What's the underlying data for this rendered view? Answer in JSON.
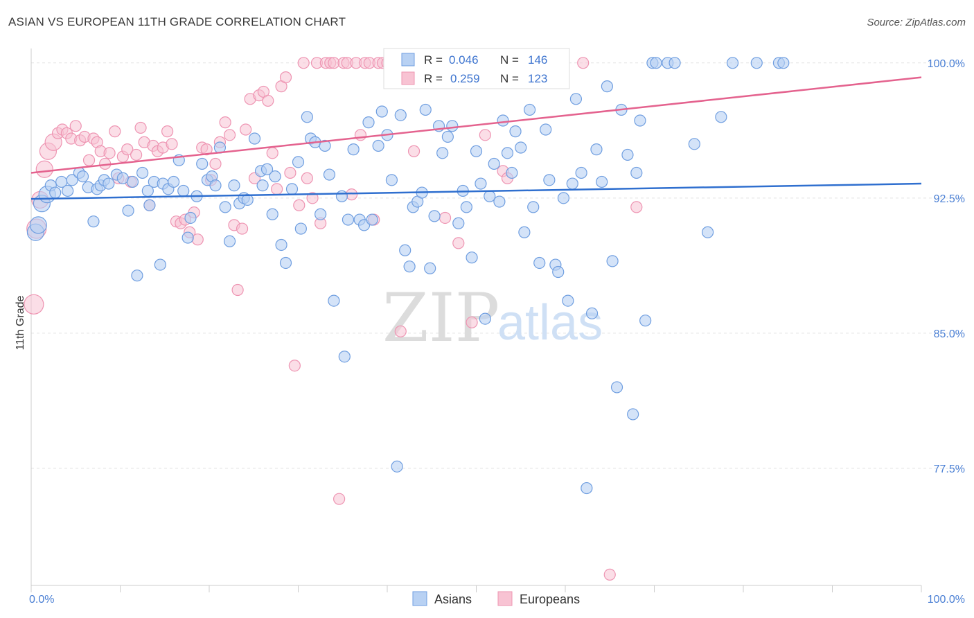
{
  "title": "ASIAN VS EUROPEAN 11TH GRADE CORRELATION CHART",
  "source": "Source: ZipAtlas.com",
  "watermark": {
    "zip": "ZIP",
    "atlas": "atlas"
  },
  "legend": {
    "r_label": "R =",
    "n_label": "N =",
    "asians": {
      "r": "0.046",
      "n": "146"
    },
    "europeans": {
      "r": "0.259",
      "n": "123"
    }
  },
  "bottom_legend": {
    "asians": "Asians",
    "europeans": "Europeans"
  },
  "colors": {
    "asians_fill": "#b8d1f3",
    "asians_stroke": "#6f9ee0",
    "asians_line": "#2f6fcf",
    "europeans_fill": "#f8c3d3",
    "europeans_stroke": "#ee94b2",
    "europeans_line": "#e4628e",
    "tick": "#4a7fd4"
  },
  "chart_data": {
    "type": "scatter",
    "title": "ASIAN VS EUROPEAN 11TH GRADE CORRELATION CHART",
    "xlabel": "",
    "ylabel": "11th Grade",
    "xlim": [
      0,
      100
    ],
    "ylim": [
      71.0,
      100.8
    ],
    "x_tick_labels": [
      "0.0%",
      "100.0%"
    ],
    "y_ticks": [
      77.5,
      85.0,
      92.5,
      100.0
    ],
    "y_tick_labels": [
      "77.5%",
      "85.0%",
      "92.5%",
      "100.0%"
    ],
    "grid": "horizontal dashed",
    "legend_position": "top-center",
    "series": [
      {
        "name": "Asians",
        "trend": {
          "x": [
            0,
            100
          ],
          "y": [
            92.45,
            93.3
          ]
        },
        "points": [
          [
            0.5,
            90.6
          ],
          [
            0.8,
            91.0
          ],
          [
            1.2,
            92.2
          ],
          [
            1.8,
            92.7
          ],
          [
            2.2,
            93.2
          ],
          [
            2.7,
            92.8
          ],
          [
            3.4,
            93.4
          ],
          [
            4.1,
            92.9
          ],
          [
            4.6,
            93.5
          ],
          [
            5.4,
            93.9
          ],
          [
            5.8,
            93.7
          ],
          [
            6.4,
            93.1
          ],
          [
            7.0,
            91.2
          ],
          [
            7.4,
            93.0
          ],
          [
            7.8,
            93.2
          ],
          [
            8.2,
            93.5
          ],
          [
            8.7,
            93.3
          ],
          [
            9.6,
            93.8
          ],
          [
            10.3,
            93.6
          ],
          [
            10.9,
            91.8
          ],
          [
            11.4,
            93.4
          ],
          [
            11.9,
            88.2
          ],
          [
            12.5,
            93.9
          ],
          [
            13.1,
            92.9
          ],
          [
            13.3,
            92.1
          ],
          [
            13.8,
            93.4
          ],
          [
            14.5,
            88.8
          ],
          [
            14.8,
            93.3
          ],
          [
            15.4,
            93.0
          ],
          [
            16.0,
            93.4
          ],
          [
            16.6,
            94.6
          ],
          [
            17.1,
            92.9
          ],
          [
            17.6,
            90.3
          ],
          [
            17.9,
            91.4
          ],
          [
            18.6,
            92.6
          ],
          [
            19.2,
            94.4
          ],
          [
            19.8,
            93.5
          ],
          [
            20.3,
            93.7
          ],
          [
            20.7,
            93.2
          ],
          [
            21.2,
            95.3
          ],
          [
            21.8,
            92.0
          ],
          [
            22.3,
            90.1
          ],
          [
            22.8,
            93.2
          ],
          [
            23.4,
            92.2
          ],
          [
            23.9,
            92.5
          ],
          [
            24.3,
            92.4
          ],
          [
            25.1,
            95.8
          ],
          [
            25.8,
            94.0
          ],
          [
            26.0,
            93.2
          ],
          [
            26.5,
            94.1
          ],
          [
            27.1,
            91.6
          ],
          [
            27.4,
            93.7
          ],
          [
            28.1,
            89.9
          ],
          [
            28.6,
            88.9
          ],
          [
            29.3,
            93.0
          ],
          [
            30.0,
            94.5
          ],
          [
            30.3,
            90.8
          ],
          [
            31.0,
            97.0
          ],
          [
            31.4,
            95.8
          ],
          [
            31.9,
            95.6
          ],
          [
            32.5,
            91.6
          ],
          [
            33.0,
            95.4
          ],
          [
            33.5,
            93.8
          ],
          [
            34.0,
            86.8
          ],
          [
            34.9,
            92.6
          ],
          [
            35.2,
            83.7
          ],
          [
            35.6,
            91.3
          ],
          [
            36.2,
            95.2
          ],
          [
            36.9,
            91.3
          ],
          [
            37.4,
            91.0
          ],
          [
            37.9,
            96.7
          ],
          [
            38.3,
            91.3
          ],
          [
            39.0,
            95.4
          ],
          [
            39.4,
            97.3
          ],
          [
            40.0,
            96.0
          ],
          [
            40.5,
            93.5
          ],
          [
            41.1,
            77.6
          ],
          [
            41.5,
            97.1
          ],
          [
            42.0,
            89.6
          ],
          [
            42.5,
            88.7
          ],
          [
            42.9,
            92.0
          ],
          [
            43.4,
            92.3
          ],
          [
            43.9,
            92.8
          ],
          [
            44.3,
            97.4
          ],
          [
            44.8,
            88.6
          ],
          [
            45.3,
            91.5
          ],
          [
            45.8,
            96.5
          ],
          [
            46.2,
            95.0
          ],
          [
            46.8,
            95.9
          ],
          [
            47.3,
            96.5
          ],
          [
            48.0,
            91.1
          ],
          [
            48.5,
            92.9
          ],
          [
            48.9,
            92.0
          ],
          [
            49.5,
            89.2
          ],
          [
            50.0,
            95.1
          ],
          [
            50.5,
            93.3
          ],
          [
            51.0,
            85.8
          ],
          [
            51.5,
            92.6
          ],
          [
            52.0,
            94.4
          ],
          [
            52.6,
            92.3
          ],
          [
            53.0,
            96.8
          ],
          [
            53.5,
            95.0
          ],
          [
            54.0,
            93.9
          ],
          [
            54.4,
            96.2
          ],
          [
            55.0,
            95.3
          ],
          [
            55.4,
            90.6
          ],
          [
            56.0,
            97.4
          ],
          [
            56.4,
            92.0
          ],
          [
            57.1,
            88.9
          ],
          [
            57.8,
            96.3
          ],
          [
            58.2,
            93.5
          ],
          [
            58.9,
            88.8
          ],
          [
            59.2,
            88.4
          ],
          [
            59.8,
            92.5
          ],
          [
            60.3,
            86.8
          ],
          [
            60.8,
            93.3
          ],
          [
            61.2,
            98.0
          ],
          [
            61.8,
            93.9
          ],
          [
            62.4,
            76.4
          ],
          [
            63.0,
            86.1
          ],
          [
            63.5,
            95.2
          ],
          [
            64.1,
            93.4
          ],
          [
            64.7,
            98.7
          ],
          [
            65.3,
            89.0
          ],
          [
            65.8,
            82.0
          ],
          [
            66.3,
            97.4
          ],
          [
            67.0,
            94.9
          ],
          [
            67.6,
            80.5
          ],
          [
            68.0,
            93.9
          ],
          [
            68.4,
            96.8
          ],
          [
            69.0,
            85.7
          ],
          [
            69.8,
            100.0
          ],
          [
            70.2,
            100.0
          ],
          [
            71.5,
            100.0
          ],
          [
            72.3,
            100.0
          ],
          [
            74.5,
            95.5
          ],
          [
            76.0,
            90.6
          ],
          [
            77.5,
            97.0
          ],
          [
            78.8,
            100.0
          ],
          [
            81.5,
            100.0
          ],
          [
            84.0,
            100.0
          ],
          [
            84.5,
            100.0
          ]
        ]
      },
      {
        "name": "Europeans",
        "trend": {
          "x": [
            0,
            100
          ],
          "y": [
            93.9,
            99.2
          ]
        },
        "points": [
          [
            0.3,
            86.6
          ],
          [
            0.6,
            90.8
          ],
          [
            1.0,
            92.4
          ],
          [
            1.5,
            94.1
          ],
          [
            1.9,
            95.1
          ],
          [
            2.5,
            95.6
          ],
          [
            3.0,
            96.1
          ],
          [
            3.5,
            96.3
          ],
          [
            4.0,
            96.1
          ],
          [
            4.5,
            95.8
          ],
          [
            5.0,
            96.5
          ],
          [
            5.5,
            95.7
          ],
          [
            6.0,
            95.9
          ],
          [
            6.5,
            94.6
          ],
          [
            7.0,
            95.8
          ],
          [
            7.4,
            95.6
          ],
          [
            7.8,
            95.1
          ],
          [
            8.3,
            94.4
          ],
          [
            8.8,
            95.0
          ],
          [
            9.4,
            96.2
          ],
          [
            9.8,
            93.6
          ],
          [
            10.3,
            94.8
          ],
          [
            10.8,
            95.2
          ],
          [
            11.2,
            93.4
          ],
          [
            11.8,
            94.9
          ],
          [
            12.3,
            96.4
          ],
          [
            12.7,
            95.6
          ],
          [
            13.3,
            92.1
          ],
          [
            13.7,
            95.4
          ],
          [
            14.2,
            95.1
          ],
          [
            14.8,
            95.3
          ],
          [
            15.3,
            96.2
          ],
          [
            15.8,
            95.5
          ],
          [
            16.3,
            91.2
          ],
          [
            16.8,
            91.1
          ],
          [
            17.3,
            91.3
          ],
          [
            17.8,
            90.6
          ],
          [
            18.3,
            91.7
          ],
          [
            18.7,
            90.2
          ],
          [
            19.2,
            95.3
          ],
          [
            19.7,
            95.2
          ],
          [
            20.2,
            93.5
          ],
          [
            20.7,
            94.4
          ],
          [
            21.2,
            95.6
          ],
          [
            21.8,
            96.7
          ],
          [
            22.3,
            96.0
          ],
          [
            22.8,
            91.0
          ],
          [
            23.2,
            87.4
          ],
          [
            23.7,
            90.8
          ],
          [
            24.1,
            96.3
          ],
          [
            24.6,
            98.0
          ],
          [
            25.1,
            93.6
          ],
          [
            25.6,
            98.2
          ],
          [
            26.1,
            98.4
          ],
          [
            26.6,
            97.9
          ],
          [
            27.1,
            95.0
          ],
          [
            27.6,
            93.0
          ],
          [
            28.1,
            98.7
          ],
          [
            28.6,
            99.2
          ],
          [
            29.1,
            93.9
          ],
          [
            29.6,
            83.2
          ],
          [
            30.1,
            92.1
          ],
          [
            30.6,
            100.0
          ],
          [
            31.0,
            93.6
          ],
          [
            31.6,
            92.5
          ],
          [
            32.1,
            100.0
          ],
          [
            32.5,
            91.1
          ],
          [
            33.1,
            100.0
          ],
          [
            33.6,
            100.0
          ],
          [
            34.0,
            100.0
          ],
          [
            34.6,
            75.8
          ],
          [
            35.1,
            100.0
          ],
          [
            35.5,
            100.0
          ],
          [
            36.0,
            92.7
          ],
          [
            36.5,
            100.0
          ],
          [
            37.0,
            96.0
          ],
          [
            37.5,
            100.0
          ],
          [
            38.0,
            100.0
          ],
          [
            38.5,
            91.3
          ],
          [
            39.0,
            100.0
          ],
          [
            39.5,
            100.0
          ],
          [
            40.0,
            100.0
          ],
          [
            40.5,
            100.0
          ],
          [
            41.0,
            100.0
          ],
          [
            41.5,
            85.1
          ],
          [
            42.0,
            100.0
          ],
          [
            42.5,
            100.0
          ],
          [
            43.0,
            95.1
          ],
          [
            43.5,
            100.0
          ],
          [
            44.0,
            100.0
          ],
          [
            44.5,
            100.0
          ],
          [
            45.0,
            100.0
          ],
          [
            45.5,
            100.0
          ],
          [
            46.0,
            100.0
          ],
          [
            46.5,
            91.4
          ],
          [
            47.0,
            100.0
          ],
          [
            47.5,
            100.0
          ],
          [
            48.0,
            90.0
          ],
          [
            48.5,
            100.0
          ],
          [
            49.0,
            100.0
          ],
          [
            49.5,
            85.6
          ],
          [
            50.0,
            100.0
          ],
          [
            50.5,
            100.0
          ],
          [
            51.0,
            96.0
          ],
          [
            51.5,
            100.0
          ],
          [
            52.0,
            99.0
          ],
          [
            52.5,
            100.0
          ],
          [
            53.0,
            94.0
          ],
          [
            53.5,
            93.6
          ],
          [
            54.0,
            100.0
          ],
          [
            54.5,
            100.0
          ],
          [
            55.0,
            100.0
          ],
          [
            56.0,
            100.0
          ],
          [
            57.0,
            100.0
          ],
          [
            62.0,
            100.0
          ],
          [
            65.0,
            71.6
          ],
          [
            68.0,
            92.0
          ]
        ]
      }
    ]
  }
}
